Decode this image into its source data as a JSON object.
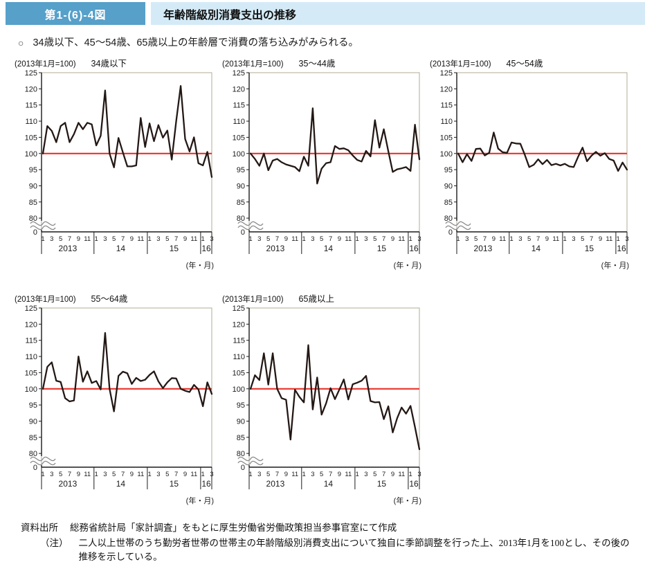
{
  "header": {
    "figure_no": "第1-(6)-4図",
    "title": "年齢階級別消費支出の推移"
  },
  "bullet": {
    "marker": "○",
    "text": "34歳以下、45〜54歳、65歳以上の年齢層で消費の落ち込みがみられる。"
  },
  "axis": {
    "index_note": "(2013年1月=100)",
    "y_ticks": [
      125,
      120,
      115,
      110,
      105,
      100,
      95,
      90,
      85,
      80
    ],
    "y_zero_label": "0",
    "month_tick_labels": [
      "1",
      "3",
      "5",
      "7",
      "9",
      "11"
    ],
    "month_tick_labels_2016": [
      "1",
      "3"
    ],
    "year_labels": [
      "2013",
      "14",
      "15",
      "16"
    ],
    "unit_label": "(年・月)"
  },
  "colors": {
    "header_box_blue": "#56a0ca",
    "header_bar_blue": "#d4ebf7",
    "series_line": "#231815",
    "baseline_red": "#e8332a",
    "plot_border": "#b3ab92",
    "axis_black": "#1a1a1a",
    "break_mark_gray": "#8a8a8a"
  },
  "chart_data": [
    {
      "type": "line",
      "title": "34歳以下",
      "index_note": "(2013年1月=100)",
      "x_start": "2013-01",
      "x_end": "2016-03",
      "frequency": "monthly",
      "baseline": 100,
      "ylim": [
        80,
        125
      ],
      "y_axis_break_to_zero": true,
      "values": [
        100,
        108.5,
        107,
        103.5,
        108.5,
        109.5,
        103.5,
        106,
        109.5,
        107.5,
        109.5,
        109,
        102.5,
        105.5,
        119.5,
        100,
        95.7,
        104.8,
        100.3,
        96,
        96,
        96.3,
        111,
        102,
        109.3,
        103.8,
        108.8,
        104.9,
        107.1,
        98.1,
        110,
        120.9,
        104.5,
        100.6,
        105,
        97,
        96.3,
        100.5,
        92.7
      ]
    },
    {
      "type": "line",
      "title": "35〜44歳",
      "index_note": "(2013年1月=100)",
      "x_start": "2013-01",
      "x_end": "2016-03",
      "frequency": "monthly",
      "baseline": 100,
      "ylim": [
        80,
        125
      ],
      "y_axis_break_to_zero": true,
      "values": [
        100,
        98.3,
        96.2,
        100,
        94.8,
        97.8,
        98.3,
        97.3,
        96.6,
        96.2,
        95.8,
        94.5,
        99,
        96.2,
        114,
        90.7,
        95.3,
        97,
        97.3,
        102.3,
        101.4,
        101.6,
        101,
        99.4,
        98,
        97.5,
        100.8,
        99.1,
        110.3,
        101.8,
        107.5,
        100.7,
        94.3,
        95.1,
        95.4,
        95.8,
        94.6,
        108.9,
        98.2
      ]
    },
    {
      "type": "line",
      "title": "45〜54歳",
      "index_note": "(2013年1月=100)",
      "x_start": "2013-01",
      "x_end": "2016-03",
      "frequency": "monthly",
      "baseline": 100,
      "ylim": [
        80,
        125
      ],
      "y_axis_break_to_zero": true,
      "values": [
        100,
        97.3,
        99.8,
        97.7,
        101.4,
        101.5,
        99.4,
        100.2,
        106.5,
        101.5,
        100.4,
        100.2,
        103.4,
        103.1,
        103,
        99.6,
        95.8,
        96.5,
        98.2,
        96.7,
        98,
        96.4,
        96.8,
        96.3,
        96.8,
        96,
        95.8,
        99,
        101.8,
        97.6,
        99.3,
        100.5,
        99.3,
        100.1,
        98.3,
        97.8,
        94.6,
        97.2,
        95
      ]
    },
    {
      "type": "line",
      "title": "55〜64歳",
      "index_note": "(2013年1月=100)",
      "x_start": "2013-01",
      "x_end": "2016-03",
      "frequency": "monthly",
      "baseline": 100,
      "ylim": [
        80,
        125
      ],
      "y_axis_break_to_zero": true,
      "values": [
        100,
        106.8,
        108.2,
        102.5,
        102.1,
        97.1,
        96.1,
        96.4,
        110,
        102.2,
        105.4,
        101.8,
        102.4,
        99.8,
        117.3,
        100,
        93,
        104,
        105.3,
        104.8,
        101.5,
        103.4,
        102.4,
        102.8,
        104.3,
        105.4,
        102.3,
        100.2,
        102,
        103.3,
        103.2,
        100,
        99.4,
        99,
        101.2,
        99.8,
        94.6,
        102,
        98.4
      ]
    },
    {
      "type": "line",
      "title": "65歳以上",
      "index_note": "(2013年1月=100)",
      "x_start": "2013-01",
      "x_end": "2016-03",
      "frequency": "monthly",
      "baseline": 100,
      "ylim": [
        80,
        125
      ],
      "y_axis_break_to_zero": true,
      "values": [
        100,
        104.2,
        102.7,
        111,
        101.3,
        111,
        100,
        97.1,
        96.6,
        84.3,
        99.7,
        97.5,
        95.8,
        113.5,
        93.6,
        103.5,
        92,
        95.5,
        100.2,
        96.8,
        99.8,
        102.9,
        96.7,
        101.4,
        101.9,
        102.5,
        104,
        96.2,
        95.8,
        95.9,
        90.6,
        94.6,
        86.5,
        90.9,
        94.2,
        92.3,
        94.7,
        88.2,
        81.3
      ]
    }
  ],
  "footer": {
    "source_label": "資料出所",
    "source_text": "総務省統計局「家計調査」をもとに厚生労働省労働政策担当参事官室にて作成",
    "note_label": "（注）",
    "note_text": "二人以上世帯のうち勤労者世帯の世帯主の年齢階級別消費支出について独自に季節調整を行った上、2013年1月を100とし、その後の推移を示している。"
  }
}
